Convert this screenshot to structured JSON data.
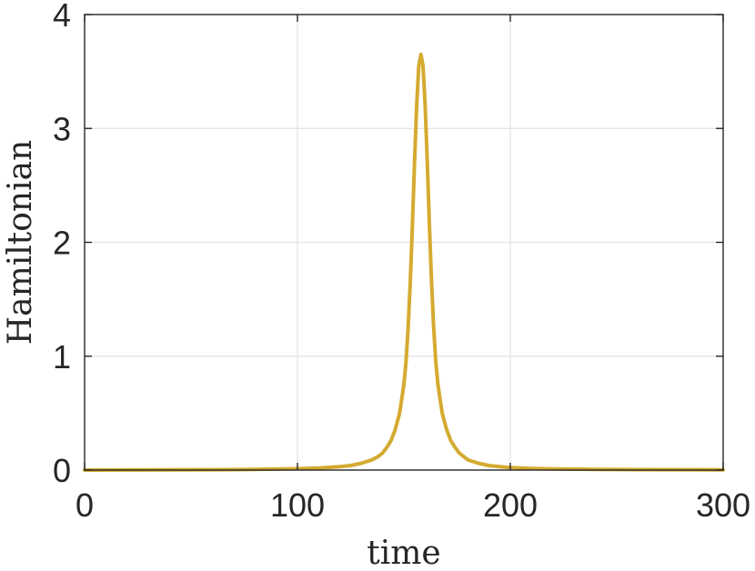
{
  "chart_data": {
    "type": "line",
    "xlabel": "time",
    "ylabel": "Hamiltonian",
    "xlim": [
      0,
      300
    ],
    "ylim": [
      0,
      4
    ],
    "xticks": [
      0,
      100,
      200,
      300
    ],
    "yticks": [
      0,
      1,
      2,
      3,
      4
    ],
    "xtick_labels": [
      "0",
      "100",
      "200",
      "300"
    ],
    "ytick_labels": [
      "0",
      "1",
      "2",
      "3",
      "4"
    ],
    "grid": true,
    "series": [
      {
        "color": "#d4aa30",
        "peak": {
          "x": 158,
          "y": 3.65
        },
        "x": [
          0,
          20,
          40,
          60,
          80,
          100,
          110,
          120,
          125,
          130,
          135,
          138,
          140,
          142,
          144,
          146,
          148,
          150,
          151,
          152,
          153,
          154,
          155,
          156,
          157,
          158,
          159,
          160,
          161,
          162,
          163,
          164,
          165,
          166,
          168,
          170,
          172,
          174,
          176,
          178,
          180,
          185,
          190,
          195,
          200,
          210,
          220,
          240,
          260,
          280,
          300
        ],
        "y": [
          0.0,
          0.001,
          0.002,
          0.003,
          0.006,
          0.012,
          0.018,
          0.03,
          0.04,
          0.06,
          0.09,
          0.12,
          0.15,
          0.2,
          0.26,
          0.36,
          0.5,
          0.75,
          0.95,
          1.25,
          1.65,
          2.15,
          2.7,
          3.2,
          3.55,
          3.65,
          3.55,
          3.2,
          2.7,
          2.15,
          1.65,
          1.25,
          0.95,
          0.75,
          0.5,
          0.36,
          0.26,
          0.2,
          0.15,
          0.12,
          0.09,
          0.06,
          0.04,
          0.03,
          0.022,
          0.014,
          0.01,
          0.006,
          0.004,
          0.003,
          0.002
        ]
      }
    ]
  }
}
